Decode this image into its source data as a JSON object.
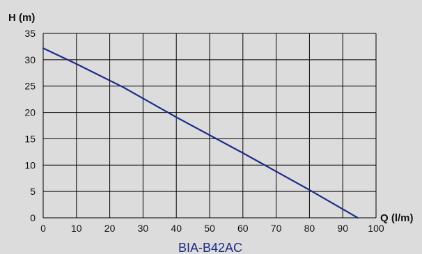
{
  "chart_data": {
    "type": "line",
    "ylabel": "H (m)",
    "xlabel": "Q (l/m)",
    "caption": "BIA-B42AC",
    "xlim": [
      0,
      100
    ],
    "ylim": [
      0,
      35
    ],
    "x_ticks": [
      0,
      10,
      20,
      30,
      40,
      50,
      60,
      70,
      80,
      90,
      100
    ],
    "y_ticks": [
      0,
      5,
      10,
      15,
      20,
      25,
      30,
      35
    ],
    "grid": true,
    "series": [
      {
        "x": [
          0,
          10,
          24,
          40,
          60,
          80,
          94.5
        ],
        "y": [
          32.2,
          29.2,
          24.8,
          19.1,
          12.3,
          5.3,
          0
        ]
      }
    ],
    "colors": {
      "background": "#dcdcdc",
      "grid": "#000000",
      "line": "#1c2c86",
      "caption": "#1c2c86"
    }
  }
}
